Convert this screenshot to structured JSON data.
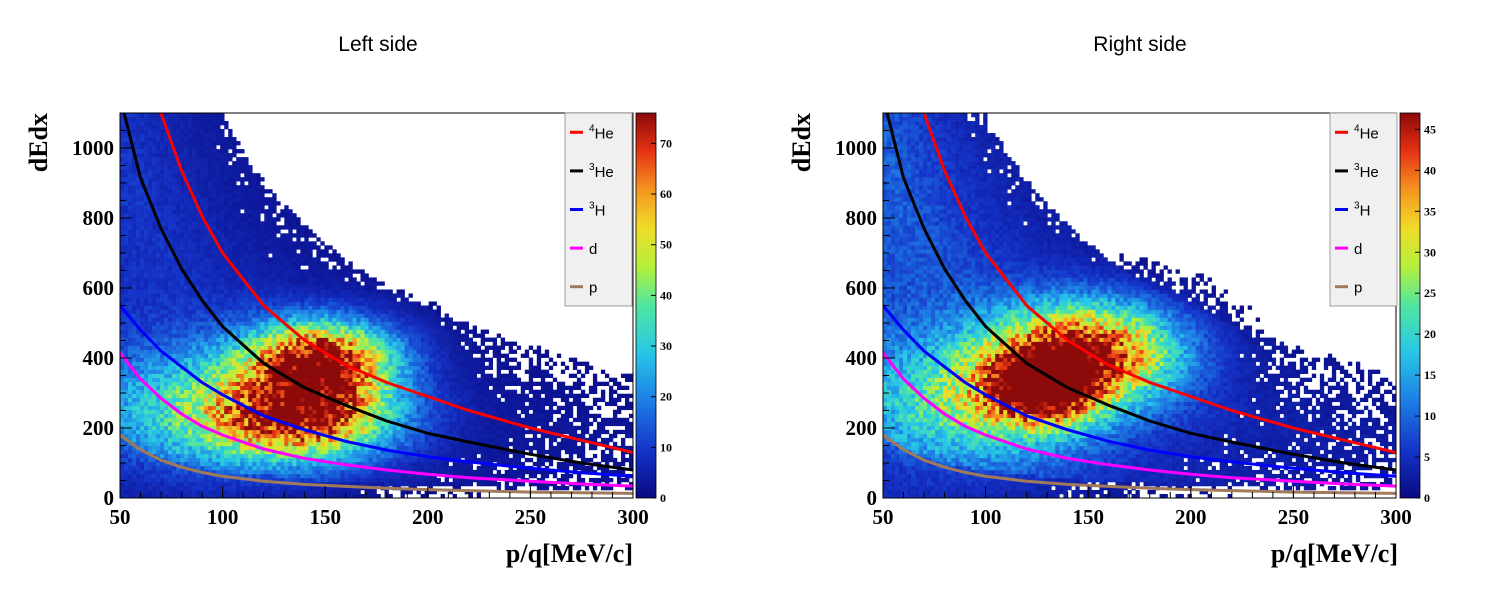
{
  "chart_data": [
    {
      "type": "heatmap",
      "title": "Left side",
      "xlabel": "p/q[MeV/c]",
      "ylabel": "dEdx",
      "xlim": [
        50,
        300
      ],
      "ylim": [
        0,
        1100
      ],
      "x_ticks": [
        50,
        100,
        150,
        200,
        250,
        300
      ],
      "y_ticks": [
        0,
        200,
        400,
        600,
        800,
        1000
      ],
      "colorbar": {
        "min": 0,
        "max": 76,
        "ticks": [
          0,
          10,
          20,
          30,
          40,
          50,
          60,
          70
        ]
      },
      "density": {
        "blobs": [
          {
            "x": 148,
            "y": 395,
            "sx": 24,
            "sy": 75,
            "amp": 72
          },
          {
            "x": 140,
            "y": 230,
            "sx": 30,
            "sy": 80,
            "amp": 60
          },
          {
            "x": 95,
            "y": 260,
            "sx": 40,
            "sy": 120,
            "amp": 28
          }
        ],
        "background": "1/x bands falling off toward high p/q"
      },
      "series": [
        {
          "name": "He",
          "mass_number": "4",
          "color": "#ff0000",
          "points": [
            [
              70,
              1100
            ],
            [
              80,
              935
            ],
            [
              90,
              805
            ],
            [
              100,
              700
            ],
            [
              120,
              550
            ],
            [
              140,
              450
            ],
            [
              160,
              380
            ],
            [
              180,
              330
            ],
            [
              200,
              290
            ],
            [
              220,
              250
            ],
            [
              250,
              200
            ],
            [
              275,
              165
            ],
            [
              300,
              130
            ]
          ]
        },
        {
          "name": "He",
          "mass_number": "3",
          "color": "#000000",
          "points": [
            [
              52,
              1100
            ],
            [
              60,
              915
            ],
            [
              70,
              770
            ],
            [
              80,
              655
            ],
            [
              90,
              565
            ],
            [
              100,
              490
            ],
            [
              120,
              385
            ],
            [
              140,
              315
            ],
            [
              160,
              265
            ],
            [
              180,
              220
            ],
            [
              200,
              185
            ],
            [
              220,
              160
            ],
            [
              250,
              125
            ],
            [
              275,
              100
            ],
            [
              300,
              80
            ]
          ]
        },
        {
          "name": "H",
          "mass_number": "3",
          "color": "#0000ff",
          "points": [
            [
              50,
              550
            ],
            [
              60,
              480
            ],
            [
              70,
              420
            ],
            [
              80,
              375
            ],
            [
              90,
              330
            ],
            [
              100,
              295
            ],
            [
              120,
              235
            ],
            [
              140,
              195
            ],
            [
              160,
              162
            ],
            [
              180,
              137
            ],
            [
              200,
              118
            ],
            [
              220,
              103
            ],
            [
              250,
              85
            ],
            [
              275,
              72
            ],
            [
              300,
              62
            ]
          ]
        },
        {
          "name": "d",
          "mass_number": "",
          "color": "#ff00ff",
          "points": [
            [
              50,
              415
            ],
            [
              60,
              340
            ],
            [
              70,
              285
            ],
            [
              80,
              240
            ],
            [
              90,
              205
            ],
            [
              100,
              180
            ],
            [
              120,
              140
            ],
            [
              140,
              113
            ],
            [
              160,
              95
            ],
            [
              180,
              80
            ],
            [
              200,
              68
            ],
            [
              220,
              58
            ],
            [
              250,
              48
            ],
            [
              275,
              40
            ],
            [
              300,
              34
            ]
          ]
        },
        {
          "name": "p",
          "mass_number": "",
          "color": "#a07a5a",
          "points": [
            [
              50,
              180
            ],
            [
              60,
              138
            ],
            [
              70,
              108
            ],
            [
              80,
              88
            ],
            [
              90,
              73
            ],
            [
              100,
              62
            ],
            [
              120,
              48
            ],
            [
              140,
              39
            ],
            [
              160,
              33
            ],
            [
              180,
              28
            ],
            [
              200,
              24
            ],
            [
              220,
              21
            ],
            [
              250,
              17
            ],
            [
              275,
              15
            ],
            [
              300,
              13
            ]
          ]
        }
      ]
    },
    {
      "type": "heatmap",
      "title": "Right side",
      "xlabel": "p/q[MeV/c]",
      "ylabel": "dEdx",
      "xlim": [
        50,
        300
      ],
      "ylim": [
        0,
        1100
      ],
      "x_ticks": [
        50,
        100,
        150,
        200,
        250,
        300
      ],
      "y_ticks": [
        0,
        200,
        400,
        600,
        800,
        1000
      ],
      "colorbar": {
        "min": 0,
        "max": 47,
        "ticks": [
          0,
          5,
          10,
          15,
          20,
          25,
          30,
          35,
          40,
          45
        ]
      },
      "density": {
        "blobs": [
          {
            "x": 150,
            "y": 420,
            "sx": 30,
            "sy": 95,
            "amp": 40
          },
          {
            "x": 128,
            "y": 320,
            "sx": 18,
            "sy": 70,
            "amp": 38
          },
          {
            "x": 100,
            "y": 280,
            "sx": 40,
            "sy": 120,
            "amp": 20
          }
        ],
        "background": "1/x bands falling off toward high p/q"
      },
      "series": [
        {
          "name": "He",
          "mass_number": "4",
          "color": "#ff0000",
          "points": [
            [
              70,
              1100
            ],
            [
              80,
              935
            ],
            [
              90,
              805
            ],
            [
              100,
              700
            ],
            [
              120,
              550
            ],
            [
              140,
              450
            ],
            [
              160,
              380
            ],
            [
              180,
              330
            ],
            [
              200,
              290
            ],
            [
              220,
              250
            ],
            [
              250,
              200
            ],
            [
              275,
              165
            ],
            [
              300,
              130
            ]
          ]
        },
        {
          "name": "He",
          "mass_number": "3",
          "color": "#000000",
          "points": [
            [
              52,
              1100
            ],
            [
              60,
              915
            ],
            [
              70,
              770
            ],
            [
              80,
              655
            ],
            [
              90,
              565
            ],
            [
              100,
              490
            ],
            [
              120,
              385
            ],
            [
              140,
              315
            ],
            [
              160,
              265
            ],
            [
              180,
              220
            ],
            [
              200,
              185
            ],
            [
              220,
              160
            ],
            [
              250,
              125
            ],
            [
              275,
              100
            ],
            [
              300,
              80
            ]
          ]
        },
        {
          "name": "H",
          "mass_number": "3",
          "color": "#0000ff",
          "points": [
            [
              50,
              550
            ],
            [
              60,
              480
            ],
            [
              70,
              420
            ],
            [
              80,
              375
            ],
            [
              90,
              330
            ],
            [
              100,
              295
            ],
            [
              120,
              235
            ],
            [
              140,
              195
            ],
            [
              160,
              162
            ],
            [
              180,
              137
            ],
            [
              200,
              118
            ],
            [
              220,
              103
            ],
            [
              250,
              85
            ],
            [
              275,
              72
            ],
            [
              300,
              62
            ]
          ]
        },
        {
          "name": "d",
          "mass_number": "",
          "color": "#ff00ff",
          "points": [
            [
              50,
              415
            ],
            [
              60,
              340
            ],
            [
              70,
              285
            ],
            [
              80,
              240
            ],
            [
              90,
              205
            ],
            [
              100,
              180
            ],
            [
              120,
              140
            ],
            [
              140,
              113
            ],
            [
              160,
              95
            ],
            [
              180,
              80
            ],
            [
              200,
              68
            ],
            [
              220,
              58
            ],
            [
              250,
              48
            ],
            [
              275,
              40
            ],
            [
              300,
              34
            ]
          ]
        },
        {
          "name": "p",
          "mass_number": "",
          "color": "#a07a5a",
          "points": [
            [
              50,
              180
            ],
            [
              60,
              138
            ],
            [
              70,
              108
            ],
            [
              80,
              88
            ],
            [
              90,
              73
            ],
            [
              100,
              62
            ],
            [
              120,
              48
            ],
            [
              140,
              39
            ],
            [
              160,
              33
            ],
            [
              180,
              28
            ],
            [
              200,
              24
            ],
            [
              220,
              21
            ],
            [
              250,
              17
            ],
            [
              275,
              15
            ],
            [
              300,
              13
            ]
          ]
        }
      ]
    }
  ]
}
